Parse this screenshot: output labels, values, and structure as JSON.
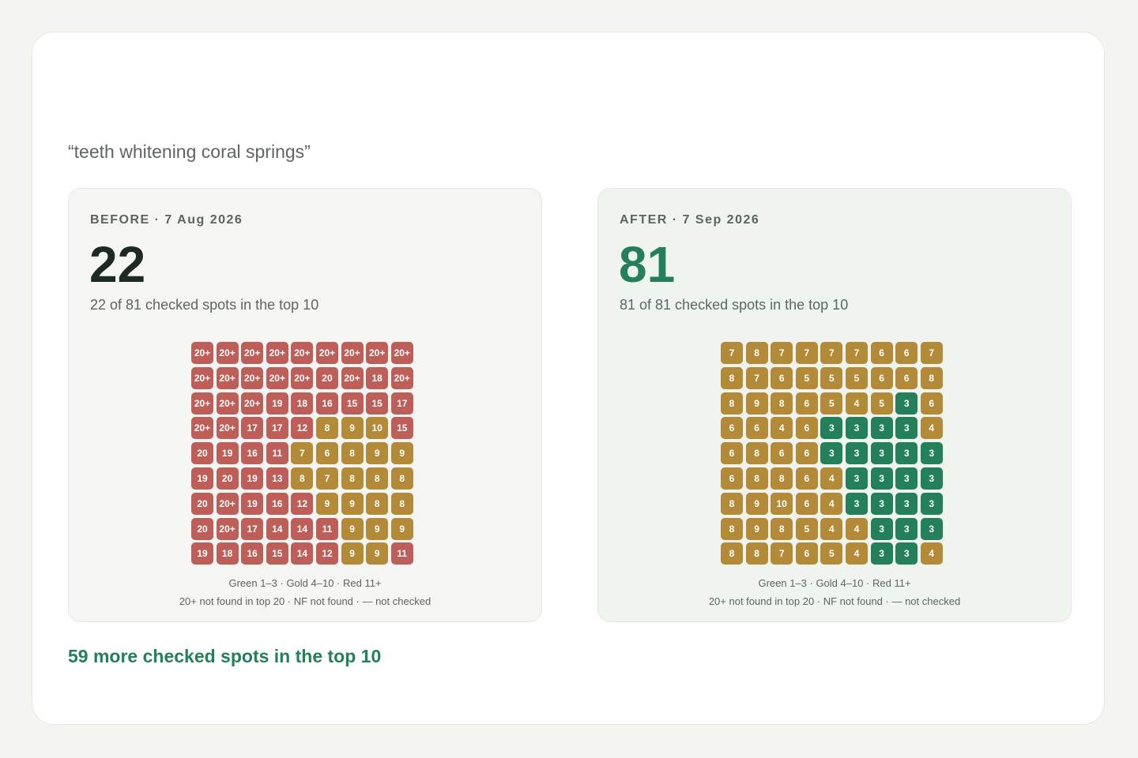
{
  "query": "“teeth whitening coral springs”",
  "colors": {
    "green": "#23805a",
    "gold": "#b38b38",
    "red": "#be5e58"
  },
  "before": {
    "label": "BEFORE · 7 Aug 2026",
    "count": "22",
    "summary": "22 of 81 checked spots in the top 10",
    "grid": [
      [
        "20+",
        "20+",
        "20+",
        "20+",
        "20+",
        "20+",
        "20+",
        "20+",
        "20+"
      ],
      [
        "20+",
        "20+",
        "20+",
        "20+",
        "20+",
        "20",
        "20+",
        "18",
        "20+"
      ],
      [
        "20+",
        "20+",
        "20+",
        "19",
        "18",
        "16",
        "15",
        "15",
        "17"
      ],
      [
        "20+",
        "20+",
        "17",
        "17",
        "12",
        "8",
        "9",
        "10",
        "15"
      ],
      [
        "20",
        "19",
        "16",
        "11",
        "7",
        "6",
        "8",
        "9",
        "9"
      ],
      [
        "19",
        "20",
        "19",
        "13",
        "8",
        "7",
        "8",
        "8",
        "8"
      ],
      [
        "20",
        "20+",
        "19",
        "16",
        "12",
        "9",
        "9",
        "8",
        "8"
      ],
      [
        "20",
        "20+",
        "17",
        "14",
        "14",
        "11",
        "9",
        "9",
        "9"
      ],
      [
        "19",
        "18",
        "16",
        "15",
        "14",
        "12",
        "9",
        "9",
        "11"
      ]
    ],
    "legend_line1": "Green 1–3 · Gold 4–10 · Red 11+",
    "legend_line2": "20+ not found in top 20 · NF not found · — not checked"
  },
  "after": {
    "label": "AFTER · 7 Sep 2026",
    "count": "81",
    "summary": "81 of 81 checked spots in the top 10",
    "grid": [
      [
        "7",
        "8",
        "7",
        "7",
        "7",
        "7",
        "6",
        "6",
        "7"
      ],
      [
        "8",
        "7",
        "6",
        "5",
        "5",
        "5",
        "6",
        "6",
        "8"
      ],
      [
        "8",
        "9",
        "8",
        "6",
        "5",
        "4",
        "5",
        "3",
        "6"
      ],
      [
        "6",
        "6",
        "4",
        "6",
        "3",
        "3",
        "3",
        "3",
        "4"
      ],
      [
        "6",
        "8",
        "6",
        "6",
        "3",
        "3",
        "3",
        "3",
        "3"
      ],
      [
        "6",
        "8",
        "8",
        "6",
        "4",
        "3",
        "3",
        "3",
        "3"
      ],
      [
        "8",
        "9",
        "10",
        "6",
        "4",
        "3",
        "3",
        "3",
        "3"
      ],
      [
        "8",
        "9",
        "8",
        "5",
        "4",
        "4",
        "3",
        "3",
        "3"
      ],
      [
        "8",
        "8",
        "7",
        "6",
        "5",
        "4",
        "3",
        "3",
        "4"
      ]
    ],
    "legend_line1": "Green 1–3 · Gold 4–10 · Red 11+",
    "legend_line2": "20+ not found in top 20 · NF not found · — not checked"
  },
  "footer_note": "59 more checked spots in the top 10"
}
